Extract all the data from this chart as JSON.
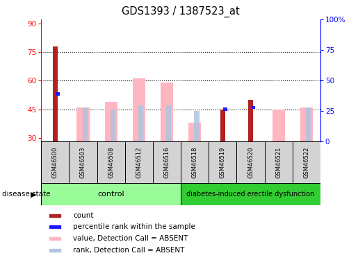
{
  "title": "GDS1393 / 1387523_at",
  "samples": [
    "GSM46500",
    "GSM46503",
    "GSM46508",
    "GSM46512",
    "GSM46516",
    "GSM46518",
    "GSM46519",
    "GSM46520",
    "GSM46521",
    "GSM46522"
  ],
  "count_values": [
    78,
    null,
    null,
    null,
    null,
    null,
    45,
    50,
    null,
    null
  ],
  "percentile_values": [
    53,
    null,
    null,
    null,
    null,
    null,
    45,
    46,
    null,
    null
  ],
  "absent_value_values": [
    null,
    46,
    49,
    61,
    59,
    38,
    null,
    null,
    45,
    46
  ],
  "absent_rank_values": [
    null,
    46,
    45,
    47,
    47,
    44,
    null,
    null,
    null,
    46
  ],
  "ylim_left": [
    28,
    92
  ],
  "yticks_left": [
    30,
    45,
    60,
    75,
    90
  ],
  "yticks_right": [
    0,
    25,
    50,
    75,
    100
  ],
  "ytick_labels_right": [
    "0",
    "25",
    "50",
    "75",
    "100%"
  ],
  "hlines": [
    45,
    60,
    75
  ],
  "color_count": "#b22222",
  "color_percentile": "#1a1aff",
  "color_absent_value": "#ffb6c1",
  "color_absent_rank": "#b0c4de",
  "bar_bottom": 28,
  "n_control": 5,
  "n_disease": 5,
  "control_color": "#98fb98",
  "disease_color": "#32cd32"
}
